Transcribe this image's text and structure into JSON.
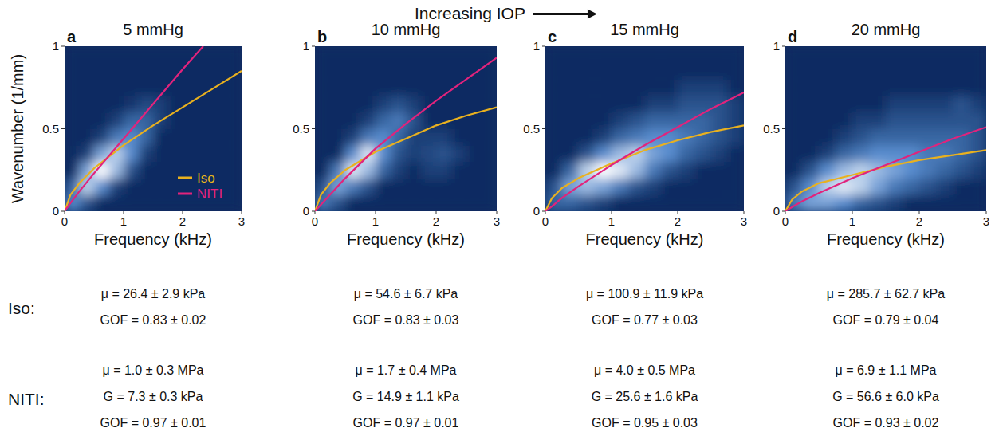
{
  "header": "Increasing IOP",
  "row_labels": [
    "Iso:",
    "NITI:"
  ],
  "chart_data": [
    {
      "type": "line",
      "panel_label": "a",
      "title": "5 mmHg",
      "x_label": "Frequency (kHz)",
      "y_label": "Wavenumber (1/mm)",
      "xlim": [
        0,
        3
      ],
      "ylim": [
        0,
        1
      ],
      "xticks": [
        0,
        1,
        2,
        3
      ],
      "yticks": [
        0,
        0.5,
        1
      ],
      "legend": "lower right",
      "series": [
        {
          "name": "Iso",
          "color": "#e9b11f",
          "x": [
            0,
            0.1,
            0.25,
            0.5,
            1,
            1.5,
            2,
            2.5,
            3
          ],
          "values": [
            0,
            0.1,
            0.17,
            0.26,
            0.4,
            0.52,
            0.63,
            0.74,
            0.85
          ]
        },
        {
          "name": "NITI",
          "color": "#e2237c",
          "x": [
            0,
            0.1,
            0.25,
            0.5,
            1,
            1.5,
            2,
            2.35
          ],
          "values": [
            0,
            0.05,
            0.12,
            0.23,
            0.44,
            0.65,
            0.86,
            1.0
          ]
        }
      ],
      "heatmap": {
        "x_edges": [
          0,
          0.25,
          0.5,
          0.75,
          1,
          1.25,
          1.5,
          1.75,
          2,
          2.25,
          2.5,
          2.75,
          3
        ],
        "y_edges": [
          0,
          0.1,
          0.2,
          0.3,
          0.4,
          0.5,
          0.6,
          0.7,
          0.8,
          0.9,
          1
        ],
        "z": [
          [
            0.5,
            0.2,
            0,
            0,
            0,
            0,
            0,
            0,
            0,
            0,
            0,
            0
          ],
          [
            0.3,
            0.8,
            0.5,
            0.1,
            0,
            0,
            0,
            0,
            0,
            0,
            0,
            0
          ],
          [
            0,
            0.6,
            1.0,
            0.7,
            0.2,
            0,
            0,
            0,
            0,
            0,
            0,
            0
          ],
          [
            0,
            0.1,
            0.6,
            0.8,
            0.5,
            0.1,
            0,
            0,
            0,
            0,
            0,
            0
          ],
          [
            0,
            0,
            0.1,
            0.4,
            0.5,
            0.3,
            0,
            0,
            0,
            0,
            0,
            0
          ],
          [
            0,
            0,
            0,
            0.1,
            0.3,
            0.3,
            0.1,
            0,
            0,
            0,
            0,
            0
          ],
          [
            0,
            0,
            0,
            0,
            0.05,
            0.15,
            0.1,
            0,
            0,
            0,
            0,
            0
          ],
          [
            0,
            0,
            0,
            0,
            0,
            0,
            0,
            0,
            0,
            0,
            0,
            0
          ],
          [
            0,
            0,
            0,
            0,
            0,
            0,
            0,
            0,
            0,
            0,
            0,
            0
          ],
          [
            0,
            0,
            0,
            0,
            0,
            0,
            0,
            0,
            0,
            0,
            0,
            0
          ]
        ]
      },
      "fit_lines": [
        [
          "μ = 26.4 ± 2.9 kPa",
          "GOF = 0.83 ± 0.02"
        ],
        [
          "μ = 1.0 ± 0.3 MPa",
          "G = 7.3 ± 0.3 kPa",
          "GOF = 0.97 ± 0.01"
        ]
      ]
    },
    {
      "type": "line",
      "panel_label": "b",
      "title": "10 mmHg",
      "x_label": "Frequency (kHz)",
      "xlim": [
        0,
        3
      ],
      "ylim": [
        0,
        1
      ],
      "xticks": [
        0,
        1,
        2,
        3
      ],
      "yticks": [
        0,
        0.5,
        1
      ],
      "series": [
        {
          "color": "#e9b11f",
          "x": [
            0,
            0.1,
            0.25,
            0.5,
            1,
            1.5,
            2,
            2.5,
            3
          ],
          "values": [
            0,
            0.1,
            0.17,
            0.25,
            0.36,
            0.44,
            0.52,
            0.58,
            0.63
          ]
        },
        {
          "color": "#e2237c",
          "x": [
            0,
            0.1,
            0.25,
            0.5,
            1,
            1.5,
            2,
            2.5,
            3
          ],
          "values": [
            0,
            0.04,
            0.1,
            0.2,
            0.38,
            0.53,
            0.67,
            0.8,
            0.93
          ]
        }
      ],
      "heatmap": {
        "x_edges": [
          0,
          0.25,
          0.5,
          0.75,
          1,
          1.25,
          1.5,
          1.75,
          2,
          2.25,
          2.5,
          2.75,
          3
        ],
        "y_edges": [
          0,
          0.1,
          0.2,
          0.3,
          0.4,
          0.5,
          0.6,
          0.7,
          0.8,
          0.9,
          1
        ],
        "z": [
          [
            0.4,
            0.2,
            0,
            0,
            0,
            0,
            0,
            0,
            0,
            0,
            0,
            0
          ],
          [
            0.2,
            0.6,
            0.4,
            0.2,
            0,
            0,
            0,
            0,
            0,
            0,
            0,
            0
          ],
          [
            0,
            0.4,
            0.9,
            0.7,
            0.3,
            0.1,
            0,
            0.1,
            0.1,
            0,
            0,
            0
          ],
          [
            0,
            0,
            0.5,
            0.9,
            0.5,
            0.2,
            0.1,
            0.15,
            0.2,
            0.1,
            0,
            0
          ],
          [
            0,
            0,
            0.1,
            0.4,
            0.5,
            0.3,
            0.1,
            0.1,
            0.1,
            0,
            0,
            0
          ],
          [
            0,
            0,
            0,
            0.1,
            0.3,
            0.4,
            0.2,
            0,
            0,
            0,
            0,
            0
          ],
          [
            0,
            0,
            0,
            0,
            0.1,
            0.2,
            0.1,
            0,
            0,
            0,
            0,
            0
          ],
          [
            0,
            0,
            0,
            0,
            0,
            0,
            0,
            0,
            0,
            0,
            0,
            0
          ],
          [
            0,
            0,
            0,
            0,
            0,
            0,
            0,
            0,
            0,
            0,
            0,
            0
          ],
          [
            0,
            0,
            0,
            0,
            0,
            0,
            0,
            0,
            0,
            0,
            0,
            0
          ]
        ]
      },
      "fit_lines": [
        [
          "μ = 54.6 ± 6.7 kPa",
          "GOF = 0.83 ± 0.03"
        ],
        [
          "μ = 1.7 ± 0.4 MPa",
          "G = 14.9 ± 1.1 kPa",
          "GOF = 0.97 ± 0.01"
        ]
      ]
    },
    {
      "type": "line",
      "panel_label": "c",
      "title": "15 mmHg",
      "x_label": "Frequency (kHz)",
      "xlim": [
        0,
        3
      ],
      "ylim": [
        0,
        1
      ],
      "xticks": [
        0,
        1,
        2,
        3
      ],
      "yticks": [
        0,
        0.5,
        1
      ],
      "series": [
        {
          "color": "#e9b11f",
          "x": [
            0,
            0.1,
            0.25,
            0.5,
            1,
            1.5,
            2,
            2.5,
            3
          ],
          "values": [
            0,
            0.08,
            0.14,
            0.2,
            0.29,
            0.37,
            0.43,
            0.48,
            0.52
          ]
        },
        {
          "color": "#e2237c",
          "x": [
            0,
            0.1,
            0.25,
            0.5,
            1,
            1.5,
            2,
            2.5,
            3
          ],
          "values": [
            0,
            0.03,
            0.08,
            0.15,
            0.28,
            0.4,
            0.51,
            0.62,
            0.72
          ]
        }
      ],
      "heatmap": {
        "x_edges": [
          0,
          0.25,
          0.5,
          0.75,
          1,
          1.25,
          1.5,
          1.75,
          2,
          2.25,
          2.5,
          2.75,
          3
        ],
        "y_edges": [
          0,
          0.1,
          0.2,
          0.3,
          0.4,
          0.5,
          0.6,
          0.7,
          0.8,
          0.9,
          1
        ],
        "z": [
          [
            0.3,
            0.3,
            0.2,
            0.1,
            0,
            0,
            0,
            0,
            0,
            0,
            0,
            0
          ],
          [
            0.2,
            0.6,
            0.7,
            0.6,
            0.4,
            0.2,
            0.1,
            0,
            0,
            0,
            0,
            0
          ],
          [
            0,
            0.3,
            0.8,
            1.0,
            0.9,
            0.7,
            0.4,
            0.2,
            0.1,
            0,
            0,
            0
          ],
          [
            0,
            0,
            0.2,
            0.5,
            0.7,
            0.8,
            0.6,
            0.5,
            0.3,
            0.2,
            0.1,
            0
          ],
          [
            0,
            0,
            0,
            0.1,
            0.3,
            0.4,
            0.5,
            0.5,
            0.4,
            0.3,
            0.2,
            0.1
          ],
          [
            0,
            0,
            0,
            0,
            0.1,
            0.2,
            0.3,
            0.3,
            0.3,
            0.3,
            0.2,
            0.1
          ],
          [
            0,
            0,
            0,
            0,
            0,
            0,
            0.1,
            0.1,
            0.2,
            0.2,
            0.2,
            0.1
          ],
          [
            0,
            0,
            0,
            0,
            0,
            0,
            0,
            0,
            0.1,
            0.1,
            0.1,
            0
          ],
          [
            0,
            0,
            0,
            0,
            0,
            0,
            0,
            0,
            0,
            0,
            0,
            0
          ],
          [
            0,
            0,
            0,
            0,
            0,
            0,
            0,
            0,
            0,
            0,
            0,
            0
          ]
        ]
      },
      "fit_lines": [
        [
          "μ = 100.9 ± 11.9 kPa",
          "GOF = 0.77 ± 0.03"
        ],
        [
          "μ = 4.0 ± 0.5 MPa",
          "G = 25.6 ± 1.6 kPa",
          "GOF = 0.95 ± 0.03"
        ]
      ]
    },
    {
      "type": "line",
      "panel_label": "d",
      "title": "20 mmHg",
      "x_label": "Frequency (kHz)",
      "xlim": [
        0,
        3
      ],
      "ylim": [
        0,
        1
      ],
      "xticks": [
        0,
        1,
        2,
        3
      ],
      "yticks": [
        0,
        0.5,
        1
      ],
      "series": [
        {
          "color": "#e9b11f",
          "x": [
            0,
            0.1,
            0.25,
            0.5,
            1,
            1.5,
            2,
            2.5,
            3
          ],
          "values": [
            0,
            0.07,
            0.12,
            0.17,
            0.22,
            0.27,
            0.31,
            0.34,
            0.37
          ]
        },
        {
          "color": "#e2237c",
          "x": [
            0,
            0.1,
            0.25,
            0.5,
            1,
            1.5,
            2,
            2.5,
            3
          ],
          "values": [
            0,
            0.025,
            0.06,
            0.11,
            0.2,
            0.28,
            0.36,
            0.44,
            0.51
          ]
        }
      ],
      "heatmap": {
        "x_edges": [
          0,
          0.25,
          0.5,
          0.75,
          1,
          1.25,
          1.5,
          1.75,
          2,
          2.25,
          2.5,
          2.75,
          3
        ],
        "y_edges": [
          0,
          0.1,
          0.2,
          0.3,
          0.4,
          0.5,
          0.6,
          0.7,
          0.8,
          0.9,
          1
        ],
        "z": [
          [
            0.4,
            0.6,
            0.6,
            0.5,
            0.3,
            0.2,
            0.1,
            0,
            0,
            0,
            0,
            0
          ],
          [
            0.2,
            0.5,
            0.8,
            0.9,
            0.8,
            0.6,
            0.4,
            0.3,
            0.2,
            0.1,
            0,
            0
          ],
          [
            0,
            0.2,
            0.5,
            0.7,
            0.8,
            0.7,
            0.6,
            0.5,
            0.4,
            0.3,
            0.2,
            0.1
          ],
          [
            0,
            0,
            0.1,
            0.3,
            0.4,
            0.5,
            0.5,
            0.5,
            0.4,
            0.4,
            0.3,
            0.2
          ],
          [
            0,
            0,
            0,
            0.1,
            0.2,
            0.3,
            0.3,
            0.3,
            0.3,
            0.3,
            0.3,
            0.2
          ],
          [
            0,
            0,
            0,
            0,
            0.1,
            0.1,
            0.2,
            0.2,
            0.2,
            0.2,
            0.2,
            0.2
          ],
          [
            0,
            0,
            0,
            0,
            0,
            0,
            0.1,
            0.1,
            0.1,
            0.1,
            0.2,
            0.1
          ],
          [
            0,
            0,
            0,
            0,
            0,
            0,
            0,
            0,
            0,
            0,
            0,
            0
          ],
          [
            0,
            0,
            0,
            0,
            0,
            0,
            0,
            0,
            0,
            0,
            0,
            0
          ],
          [
            0,
            0,
            0,
            0,
            0,
            0,
            0,
            0,
            0,
            0,
            0,
            0
          ]
        ]
      },
      "fit_lines": [
        [
          "μ = 285.7 ± 62.7 kPa",
          "GOF = 0.79 ± 0.04"
        ],
        [
          "μ = 6.9 ± 1.1 MPa",
          "G = 56.6 ± 6.0 kPa",
          "GOF = 0.93 ± 0.02"
        ]
      ]
    }
  ]
}
